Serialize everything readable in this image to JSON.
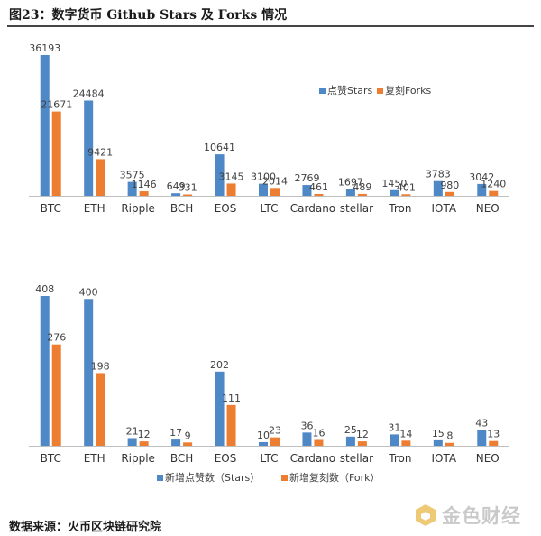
{
  "title": "图23：数字货币 Github Stars 及 Forks 情况",
  "source": "数据来源：火币区块链研究院",
  "watermark": "金色财经",
  "colors": {
    "series1": "#4f88c6",
    "series2": "#ec7d31",
    "axis": "#bfbfbf",
    "text": "#404040"
  },
  "chart_data": [
    {
      "type": "bar",
      "categories": [
        "BTC",
        "ETH",
        "Ripple",
        "BCH",
        "EOS",
        "LTC",
        "Cardano",
        "stellar",
        "Tron",
        "IOTA",
        "NEO"
      ],
      "series": [
        {
          "name": "点赞Stars",
          "values": [
            36193,
            24484,
            3575,
            649,
            10641,
            3100,
            2769,
            1697,
            1450,
            3783,
            3042
          ]
        },
        {
          "name": "复刻Forks",
          "values": [
            21671,
            9421,
            1146,
            331,
            3145,
            2014,
            461,
            489,
            401,
            980,
            1240
          ]
        }
      ],
      "ylim": [
        0,
        36193
      ],
      "legend": "right"
    },
    {
      "type": "bar",
      "categories": [
        "BTC",
        "ETH",
        "Ripple",
        "BCH",
        "EOS",
        "LTC",
        "Cardano",
        "stellar",
        "Tron",
        "IOTA",
        "NEO"
      ],
      "series": [
        {
          "name": "新增点赞数（Stars）",
          "values": [
            408,
            400,
            21,
            17,
            202,
            10,
            36,
            25,
            31,
            15,
            43
          ]
        },
        {
          "name": "新增复刻数（Fork）",
          "values": [
            276,
            198,
            12,
            9,
            111,
            23,
            16,
            12,
            14,
            8,
            13
          ]
        }
      ],
      "ylim": [
        0,
        408
      ],
      "legend": "bottom"
    }
  ]
}
